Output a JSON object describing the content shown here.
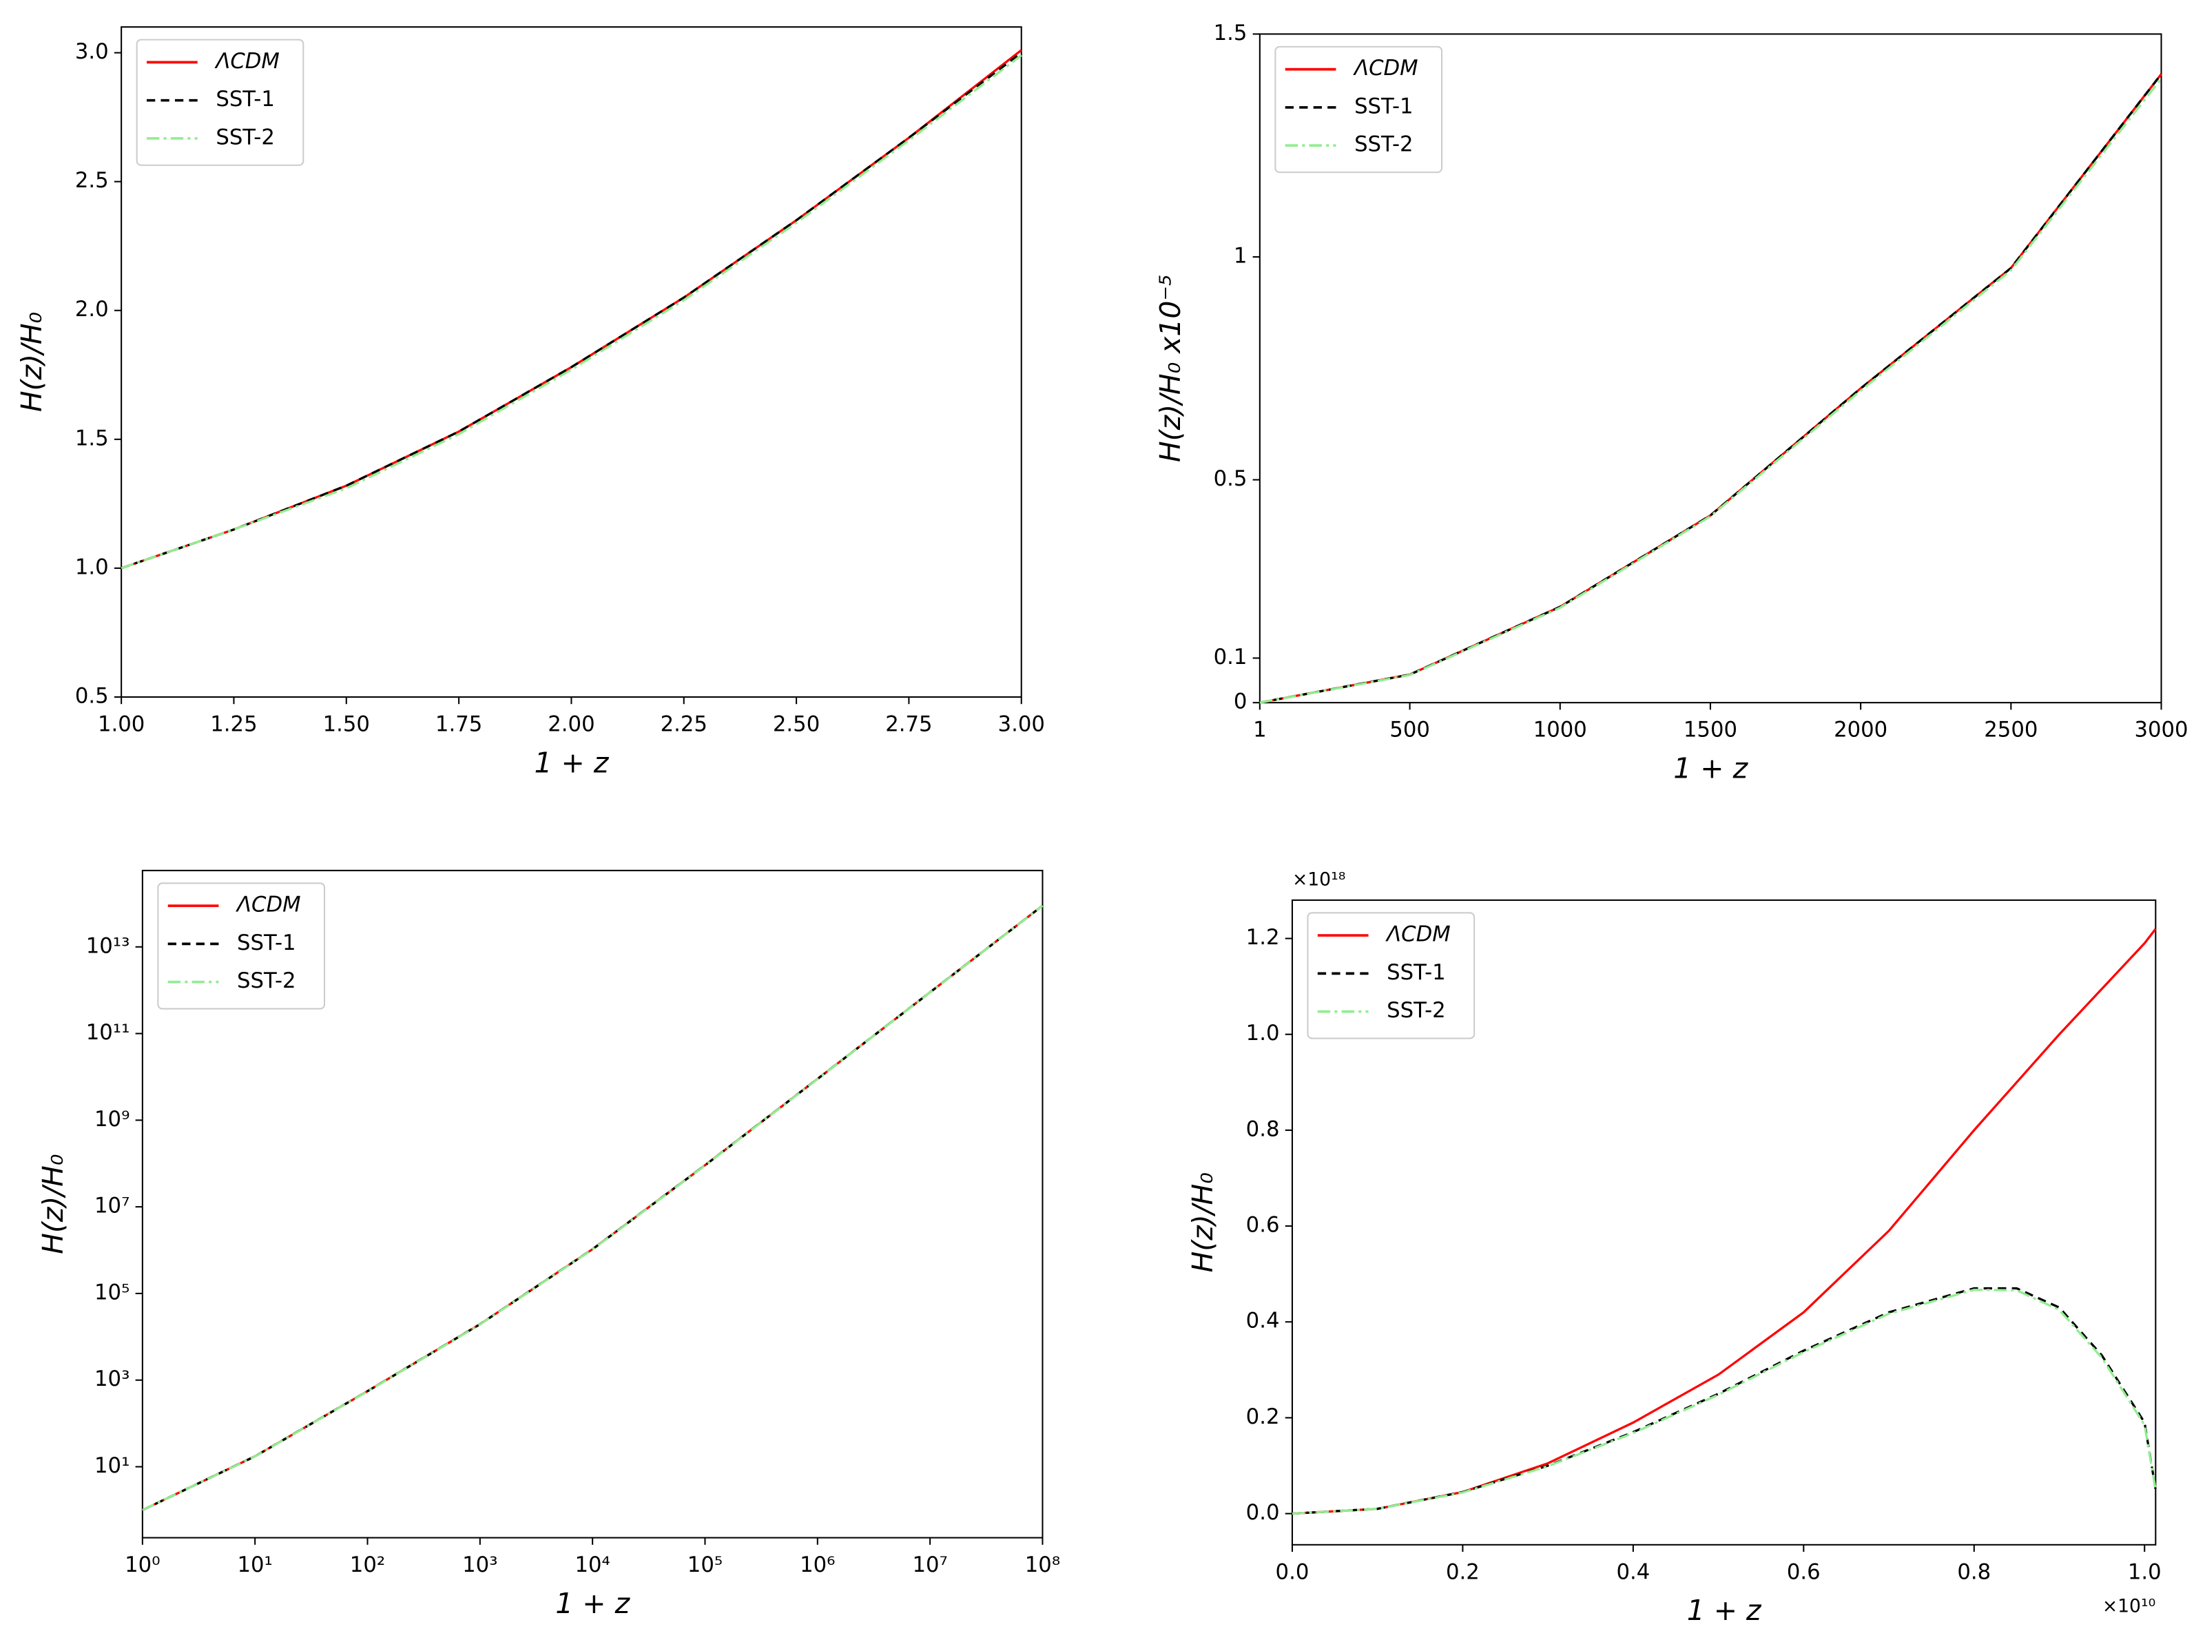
{
  "chart_data": [
    {
      "type": "line",
      "xlabel": "1 + z",
      "ylabel": "H(z)/H₀",
      "x": [
        1.0,
        1.25,
        1.5,
        1.75,
        2.0,
        2.25,
        2.5,
        2.75,
        3.0
      ],
      "series": [
        {
          "name": "ΛCDM",
          "color": "#ff0000",
          "style": "solid",
          "values": [
            1.0,
            1.15,
            1.32,
            1.53,
            1.78,
            2.05,
            2.35,
            2.67,
            3.01
          ]
        },
        {
          "name": "SST-1",
          "color": "#000000",
          "style": "dashed",
          "values": [
            1.0,
            1.15,
            1.32,
            1.53,
            1.78,
            2.05,
            2.35,
            2.67,
            3.0
          ]
        },
        {
          "name": "SST-2",
          "color": "#90ee90",
          "style": "dashdot",
          "values": [
            1.0,
            1.15,
            1.31,
            1.52,
            1.77,
            2.04,
            2.34,
            2.66,
            2.99
          ]
        }
      ],
      "xlim": [
        1.0,
        3.0
      ],
      "ylim": [
        0.5,
        3.1
      ],
      "xticks": [
        {
          "value": 1.0,
          "label": "1.00"
        },
        1.25,
        {
          "value": 1.5,
          "label": "1.50"
        },
        1.75,
        {
          "value": 2.0,
          "label": "2.00"
        },
        2.25,
        {
          "value": 2.5,
          "label": "2.50"
        },
        2.75,
        {
          "value": 3.0,
          "label": "3.00"
        }
      ],
      "yticks": [
        0.5,
        {
          "value": 1.0,
          "label": "1.0"
        },
        1.5,
        {
          "value": 2.0,
          "label": "2.0"
        },
        2.5,
        {
          "value": 3.0,
          "label": "3.0"
        }
      ],
      "legend": "upper left",
      "grid": false
    },
    {
      "type": "line",
      "xlabel": "1 + z",
      "ylabel": "H(z)/H₀ x10⁻⁵",
      "x": [
        1,
        500,
        1000,
        1500,
        2000,
        2500,
        3000
      ],
      "series": [
        {
          "name": "ΛCDM",
          "color": "#ff0000",
          "style": "solid",
          "values": [
            0,
            0.063,
            0.215,
            0.42,
            0.705,
            0.975,
            1.41
          ]
        },
        {
          "name": "SST-1",
          "color": "#000000",
          "style": "dashed",
          "values": [
            0,
            0.063,
            0.215,
            0.42,
            0.705,
            0.975,
            1.41
          ]
        },
        {
          "name": "SST-2",
          "color": "#90ee90",
          "style": "dashdot",
          "values": [
            0,
            0.062,
            0.213,
            0.418,
            0.7,
            0.97,
            1.4
          ]
        }
      ],
      "xlim": [
        1,
        3000
      ],
      "ylim": [
        0,
        1.5
      ],
      "xticks": [
        1,
        500,
        1000,
        1500,
        2000,
        2500,
        3000
      ],
      "yticks": [
        0,
        0.1,
        0.5,
        1,
        1.5
      ],
      "legend": "upper left",
      "grid": false
    },
    {
      "type": "line",
      "xlabel": "1 + z",
      "ylabel": "H(z)/H₀",
      "xscale": "log",
      "yscale": "log",
      "x": [
        1,
        10,
        100,
        1000,
        10000,
        100000,
        1000000,
        10000000,
        100000000
      ],
      "series": [
        {
          "name": "ΛCDM",
          "color": "#ff0000",
          "style": "solid",
          "values": [
            1.0,
            17.4,
            555,
            19500,
            1050000,
            91000000,
            8960000000,
            894000000000,
            89400000000000
          ]
        },
        {
          "name": "SST-1",
          "color": "#000000",
          "style": "dashed",
          "values": [
            1.0,
            17.4,
            555,
            19500,
            1050000,
            91000000,
            8960000000,
            894000000000,
            89400000000000
          ]
        },
        {
          "name": "SST-2",
          "color": "#90ee90",
          "style": "dashdot",
          "values": [
            1.0,
            17.3,
            550,
            19300,
            1040000,
            90000000,
            8900000000,
            890000000000,
            89000000000000
          ]
        }
      ],
      "xlim": [
        1,
        100000000
      ],
      "ylim": [
        0.23,
        580000000000000
      ],
      "xticks": [
        {
          "value": 1,
          "label": "10⁰"
        },
        {
          "value": 10,
          "label": "10¹"
        },
        {
          "value": 100,
          "label": "10²"
        },
        {
          "value": 1000,
          "label": "10³"
        },
        {
          "value": 10000,
          "label": "10⁴"
        },
        {
          "value": 100000,
          "label": "10⁵"
        },
        {
          "value": 1000000,
          "label": "10⁶"
        },
        {
          "value": 10000000,
          "label": "10⁷"
        },
        {
          "value": 100000000,
          "label": "10⁸"
        }
      ],
      "yticks": [
        {
          "value": 10,
          "label": "10¹"
        },
        {
          "value": 1000,
          "label": "10³"
        },
        {
          "value": 100000,
          "label": "10⁵"
        },
        {
          "value": 10000000,
          "label": "10⁷"
        },
        {
          "value": 1000000000,
          "label": "10⁹"
        },
        {
          "value": 100000000000,
          "label": "10¹¹"
        },
        {
          "value": 10000000000000,
          "label": "10¹³"
        }
      ],
      "legend": "upper left",
      "grid": false
    },
    {
      "type": "line",
      "xlabel": "1 + z",
      "ylabel": "H(z)/H₀",
      "x_offset_label": "×10¹⁰",
      "y_offset_label": "×10¹⁸",
      "series": [
        {
          "name": "ΛCDM",
          "color": "#ff0000",
          "style": "solid",
          "x": [
            0,
            0.1,
            0.2,
            0.3,
            0.4,
            0.5,
            0.6,
            0.7,
            0.8,
            0.9,
            1.0,
            1.013
          ],
          "values": [
            0,
            0.01,
            0.045,
            0.105,
            0.19,
            0.29,
            0.42,
            0.59,
            0.8,
            1.0,
            1.19,
            1.22
          ]
        },
        {
          "name": "SST-1",
          "color": "#000000",
          "style": "dashed",
          "x": [
            0,
            0.1,
            0.2,
            0.3,
            0.4,
            0.5,
            0.6,
            0.7,
            0.8,
            0.85,
            0.9,
            0.95,
            1.0,
            1.013
          ],
          "values": [
            0,
            0.01,
            0.045,
            0.1,
            0.17,
            0.25,
            0.34,
            0.42,
            0.47,
            0.47,
            0.43,
            0.33,
            0.19,
            0.05
          ]
        },
        {
          "name": "SST-2",
          "color": "#90ee90",
          "style": "dashdot",
          "x": [
            0,
            0.1,
            0.2,
            0.3,
            0.4,
            0.5,
            0.6,
            0.7,
            0.8,
            0.85,
            0.9,
            0.95,
            1.0,
            1.013
          ],
          "values": [
            0,
            0.01,
            0.044,
            0.099,
            0.168,
            0.248,
            0.337,
            0.417,
            0.467,
            0.466,
            0.425,
            0.325,
            0.185,
            0.05
          ]
        }
      ],
      "xlim": [
        0,
        1.013
      ],
      "ylim": [
        -0.065,
        1.28
      ],
      "xticks": [
        {
          "value": 0,
          "label": "0.0"
        },
        0.2,
        0.4,
        0.6,
        0.8,
        {
          "value": 1.0,
          "label": "1.0"
        }
      ],
      "yticks": [
        {
          "value": 0,
          "label": "0.0"
        },
        0.2,
        0.4,
        0.6,
        0.8,
        {
          "value": 1.0,
          "label": "1.0"
        },
        1.2
      ],
      "legend": "upper left",
      "grid": false
    }
  ]
}
